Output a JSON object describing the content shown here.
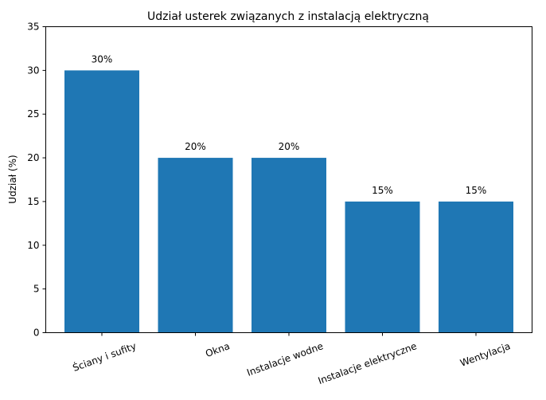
{
  "chart_data": {
    "type": "bar",
    "title": "Udział usterek związanych z instalacją elektryczną",
    "xlabel": "",
    "ylabel": "Udział (%)",
    "categories": [
      "Ściany i sufity",
      "Okna",
      "Instalacje wodne",
      "Instalacje elektryczne",
      "Wentylacja"
    ],
    "values": [
      30,
      20,
      20,
      15,
      15
    ],
    "value_labels": [
      "30%",
      "20%",
      "20%",
      "15%",
      "15%"
    ],
    "ylim": [
      0,
      35
    ],
    "yticks": [
      0,
      5,
      10,
      15,
      20,
      25,
      30,
      35
    ],
    "grid": false,
    "legend": null,
    "bar_color": "#1f77b4",
    "xtick_rotation": -20
  }
}
